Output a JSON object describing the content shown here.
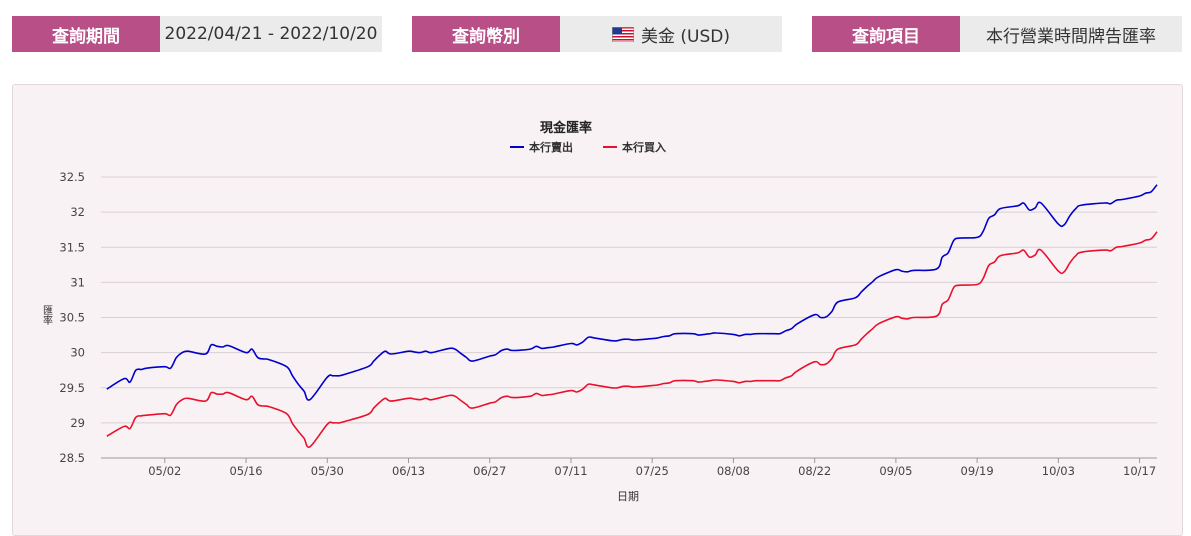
{
  "filters": {
    "period": {
      "label": "查詢期間",
      "value": "2022/04/21 - 2022/10/20"
    },
    "currency": {
      "label": "查詢幣別",
      "value": "美金 (USD)",
      "icon": "us-flag-icon"
    },
    "item": {
      "label": "查詢項目",
      "value": "本行營業時間牌告匯率"
    }
  },
  "chart_data": {
    "type": "line",
    "title": "現金匯率",
    "xlabel": "日期",
    "ylabel": "匯率",
    "ylim": [
      28.5,
      32.5
    ],
    "yticks": [
      "28.5",
      "29",
      "29.5",
      "30",
      "30.5",
      "31",
      "31.5",
      "32",
      "32.5"
    ],
    "x_range": [
      "2022-04-21",
      "2022-10-20"
    ],
    "xticks": [
      "05/02",
      "05/16",
      "05/30",
      "06/13",
      "06/27",
      "07/11",
      "07/25",
      "08/08",
      "08/22",
      "09/05",
      "09/19",
      "10/03",
      "10/17"
    ],
    "grid": true,
    "legend_position": "top",
    "x": [
      "2022-04-22",
      "2022-04-25",
      "2022-04-26",
      "2022-04-27",
      "2022-04-28",
      "2022-04-29",
      "2022-05-02",
      "2022-05-03",
      "2022-05-04",
      "2022-05-05",
      "2022-05-06",
      "2022-05-09",
      "2022-05-10",
      "2022-05-11",
      "2022-05-12",
      "2022-05-13",
      "2022-05-16",
      "2022-05-17",
      "2022-05-18",
      "2022-05-19",
      "2022-05-20",
      "2022-05-23",
      "2022-05-24",
      "2022-05-25",
      "2022-05-26",
      "2022-05-27",
      "2022-05-30",
      "2022-05-31",
      "2022-06-01",
      "2022-06-02",
      "2022-06-06",
      "2022-06-07",
      "2022-06-08",
      "2022-06-09",
      "2022-06-10",
      "2022-06-13",
      "2022-06-14",
      "2022-06-15",
      "2022-06-16",
      "2022-06-17",
      "2022-06-20",
      "2022-06-21",
      "2022-06-22",
      "2022-06-23",
      "2022-06-24",
      "2022-06-27",
      "2022-06-28",
      "2022-06-29",
      "2022-06-30",
      "2022-07-01",
      "2022-07-04",
      "2022-07-05",
      "2022-07-06",
      "2022-07-07",
      "2022-07-08",
      "2022-07-11",
      "2022-07-12",
      "2022-07-13",
      "2022-07-14",
      "2022-07-15",
      "2022-07-18",
      "2022-07-19",
      "2022-07-20",
      "2022-07-21",
      "2022-07-22",
      "2022-07-25",
      "2022-07-26",
      "2022-07-27",
      "2022-07-28",
      "2022-07-29",
      "2022-08-01",
      "2022-08-02",
      "2022-08-03",
      "2022-08-04",
      "2022-08-05",
      "2022-08-08",
      "2022-08-09",
      "2022-08-10",
      "2022-08-11",
      "2022-08-12",
      "2022-08-15",
      "2022-08-16",
      "2022-08-17",
      "2022-08-18",
      "2022-08-19",
      "2022-08-22",
      "2022-08-23",
      "2022-08-24",
      "2022-08-25",
      "2022-08-26",
      "2022-08-29",
      "2022-08-30",
      "2022-08-31",
      "2022-09-01",
      "2022-09-02",
      "2022-09-05",
      "2022-09-06",
      "2022-09-07",
      "2022-09-08",
      "2022-09-12",
      "2022-09-13",
      "2022-09-14",
      "2022-09-15",
      "2022-09-16",
      "2022-09-19",
      "2022-09-20",
      "2022-09-21",
      "2022-09-22",
      "2022-09-23",
      "2022-09-26",
      "2022-09-27",
      "2022-09-28",
      "2022-09-29",
      "2022-09-30",
      "2022-10-03",
      "2022-10-04",
      "2022-10-05",
      "2022-10-06",
      "2022-10-07",
      "2022-10-11",
      "2022-10-12",
      "2022-10-13",
      "2022-10-14",
      "2022-10-17",
      "2022-10-18",
      "2022-10-19",
      "2022-10-20"
    ],
    "series": [
      {
        "name": "本行賣出",
        "color": "#0000cc",
        "values": [
          29.48,
          29.63,
          29.58,
          29.75,
          29.76,
          29.78,
          29.8,
          29.78,
          29.93,
          30.0,
          30.02,
          29.98,
          30.11,
          30.09,
          30.08,
          30.1,
          30.0,
          30.05,
          29.93,
          29.91,
          29.9,
          29.8,
          29.67,
          29.55,
          29.45,
          29.33,
          29.65,
          29.67,
          29.67,
          29.69,
          29.8,
          29.88,
          29.96,
          30.02,
          29.98,
          30.02,
          30.01,
          30.0,
          30.02,
          30.0,
          30.06,
          30.05,
          29.99,
          29.93,
          29.88,
          29.95,
          29.97,
          30.03,
          30.05,
          30.03,
          30.05,
          30.09,
          30.06,
          30.07,
          30.08,
          30.13,
          30.11,
          30.15,
          30.22,
          30.21,
          30.17,
          30.17,
          30.19,
          30.19,
          30.18,
          30.2,
          30.21,
          30.23,
          30.24,
          30.27,
          30.27,
          30.25,
          30.26,
          30.27,
          30.28,
          30.26,
          30.24,
          30.26,
          30.26,
          30.27,
          30.27,
          30.27,
          30.31,
          30.34,
          30.41,
          30.54,
          30.5,
          30.51,
          30.59,
          30.72,
          30.78,
          30.86,
          30.94,
          31.01,
          31.08,
          31.18,
          31.16,
          31.15,
          31.17,
          31.19,
          31.36,
          31.42,
          31.6,
          31.63,
          31.64,
          31.72,
          31.91,
          31.96,
          32.05,
          32.09,
          32.13,
          32.03,
          32.06,
          32.13,
          31.83,
          31.82,
          31.95,
          32.05,
          32.1,
          32.13,
          32.12,
          32.17,
          32.18,
          32.23,
          32.27,
          32.29,
          32.39
        ]
      },
      {
        "name": "本行買入",
        "color": "#e8112d",
        "values": [
          28.81,
          28.95,
          28.92,
          29.08,
          29.1,
          29.11,
          29.13,
          29.11,
          29.26,
          29.33,
          29.35,
          29.31,
          29.43,
          29.41,
          29.41,
          29.43,
          29.33,
          29.38,
          29.26,
          29.24,
          29.23,
          29.13,
          28.99,
          28.88,
          28.78,
          28.66,
          28.98,
          29.0,
          29.0,
          29.02,
          29.12,
          29.21,
          29.29,
          29.35,
          29.31,
          29.35,
          29.34,
          29.33,
          29.35,
          29.33,
          29.39,
          29.38,
          29.32,
          29.26,
          29.21,
          29.28,
          29.3,
          29.36,
          29.38,
          29.36,
          29.38,
          29.42,
          29.39,
          29.4,
          29.41,
          29.46,
          29.44,
          29.48,
          29.55,
          29.54,
          29.5,
          29.5,
          29.52,
          29.52,
          29.51,
          29.53,
          29.54,
          29.56,
          29.57,
          29.6,
          29.6,
          29.58,
          29.59,
          29.6,
          29.61,
          29.59,
          29.57,
          29.59,
          29.59,
          29.6,
          29.6,
          29.6,
          29.64,
          29.67,
          29.74,
          29.87,
          29.83,
          29.84,
          29.92,
          30.05,
          30.11,
          30.19,
          30.27,
          30.34,
          30.41,
          30.51,
          30.49,
          30.48,
          30.5,
          30.52,
          30.69,
          30.75,
          30.93,
          30.96,
          30.97,
          31.05,
          31.24,
          31.29,
          31.38,
          31.42,
          31.46,
          31.36,
          31.39,
          31.46,
          31.16,
          31.15,
          31.28,
          31.38,
          31.43,
          31.46,
          31.45,
          31.5,
          31.51,
          31.56,
          31.6,
          31.62,
          31.72
        ]
      }
    ]
  }
}
